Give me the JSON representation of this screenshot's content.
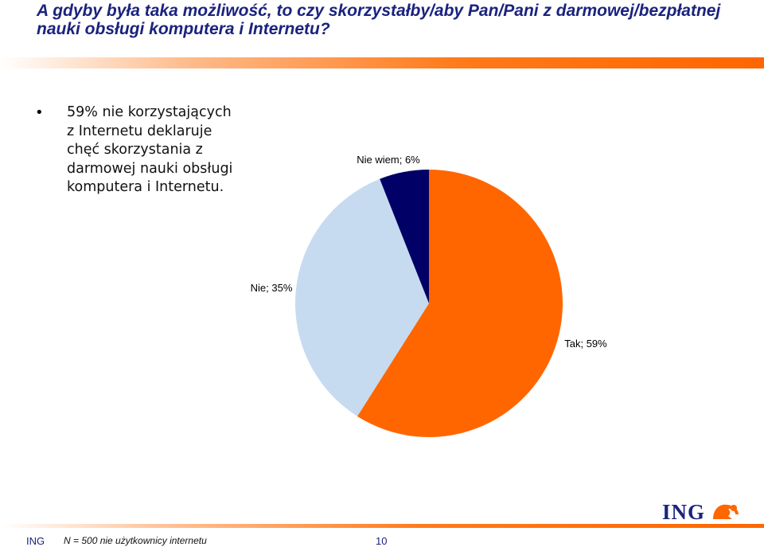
{
  "slide": {
    "title": "A gdyby była taka możliwość, to czy skorzystałby/aby Pan/Pani z darmowej/bezpłatnej nauki obsługi komputera i Internetu?",
    "bullet": "59% nie korzystających z Internetu deklaruje chęć skorzystania z darmowej nauki obsługi komputera i Internetu.",
    "footer_company": "ING",
    "footer_note": "N = 500 nie użytkownicy internetu",
    "page_number": "10",
    "logo_text": "ING"
  },
  "colors": {
    "title": "#1a237e",
    "accent_orange": "#ff6600",
    "tak": "#ff6600",
    "nie": "#c6dbf0",
    "nie_wiem": "#000066"
  },
  "chart_data": {
    "type": "pie",
    "slices": [
      {
        "category": "Tak",
        "value": 59,
        "label": "Tak; 59%",
        "color": "#ff6600"
      },
      {
        "category": "Nie",
        "value": 35,
        "label": "Nie; 35%",
        "color": "#c6dbf0"
      },
      {
        "category": "Nie wiem",
        "value": 6,
        "label": "Nie wiem; 6%",
        "color": "#000066"
      }
    ],
    "start": "12 o'clock",
    "direction": "clockwise",
    "legend": "none"
  }
}
